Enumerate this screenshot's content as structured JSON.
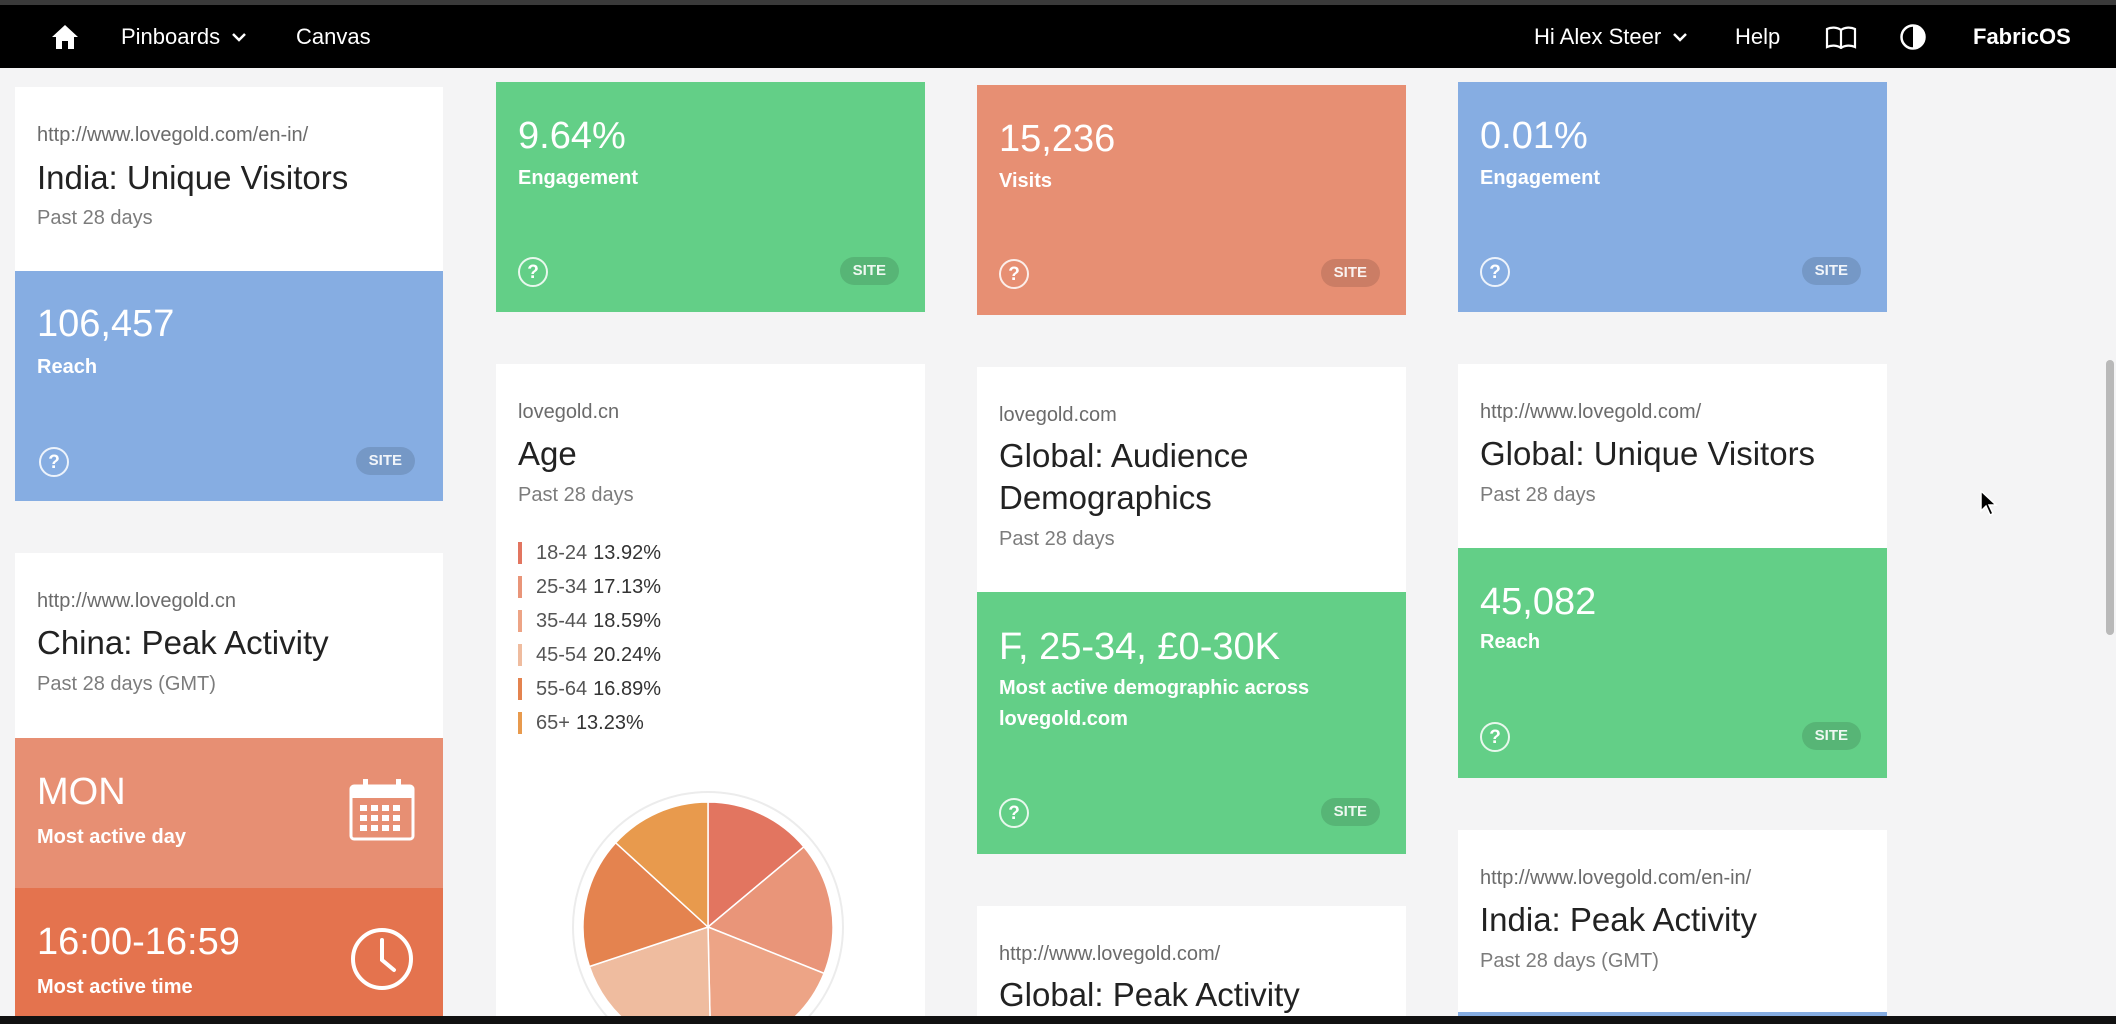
{
  "nav": {
    "home_icon": "home-icon",
    "pinboards": "Pinboards",
    "canvas": "Canvas",
    "greeting": "Hi Alex Steer",
    "help": "Help",
    "docs_icon": "book-icon",
    "theme_icon": "contrast-icon",
    "brand": "FabricOS"
  },
  "badge": "SITE",
  "help_glyph": "?",
  "cards": {
    "india_visitors": {
      "source": "http://www.lovegold.com/en-in/",
      "title": "India: Unique Visitors",
      "period": "Past 28 days",
      "value": "106,457",
      "label": "Reach"
    },
    "china_peak": {
      "source": "http://www.lovegold.cn",
      "title": "China: Peak Activity",
      "period": "Past 28 days (GMT)",
      "day_value": "MON",
      "day_label": "Most active day",
      "time_value": "16:00-16:59",
      "time_label": "Most active time"
    },
    "engagement_green": {
      "value": "9.64%",
      "label": "Engagement"
    },
    "age": {
      "source": "lovegold.cn",
      "title": "Age",
      "period": "Past 28 days"
    },
    "visits": {
      "value": "15,236",
      "label": "Visits"
    },
    "global_demo": {
      "source": "lovegold.com",
      "title_line1": "Global: Audience",
      "title_line2": "Demographics",
      "period": "Past 28 days",
      "value": "F, 25-34, £0-30K",
      "label_line1": "Most active demographic across",
      "label_line2": "lovegold.com"
    },
    "global_peak": {
      "source": "http://www.lovegold.com/",
      "title": "Global: Peak Activity"
    },
    "engagement_blue": {
      "value": "0.01%",
      "label": "Engagement"
    },
    "global_visitors": {
      "source": "http://www.lovegold.com/",
      "title": "Global: Unique Visitors",
      "period": "Past 28 days",
      "value": "45,082",
      "label": "Reach"
    },
    "india_peak": {
      "source": "http://www.lovegold.com/en-in/",
      "title": "India: Peak Activity",
      "period": "Past 28 days (GMT)"
    }
  },
  "chart_data": {
    "type": "pie",
    "categories": [
      "18-24",
      "25-34",
      "35-44",
      "45-54",
      "55-64",
      "65+"
    ],
    "values": [
      13.92,
      17.13,
      18.59,
      20.24,
      16.89,
      13.23
    ],
    "value_labels": [
      "13.92%",
      "17.13%",
      "18.59%",
      "20.24%",
      "16.89%",
      "13.23%"
    ],
    "colors": [
      "#e27560",
      "#e99579",
      "#eda486",
      "#efbc9f",
      "#e4834f",
      "#e89a4d"
    ]
  }
}
